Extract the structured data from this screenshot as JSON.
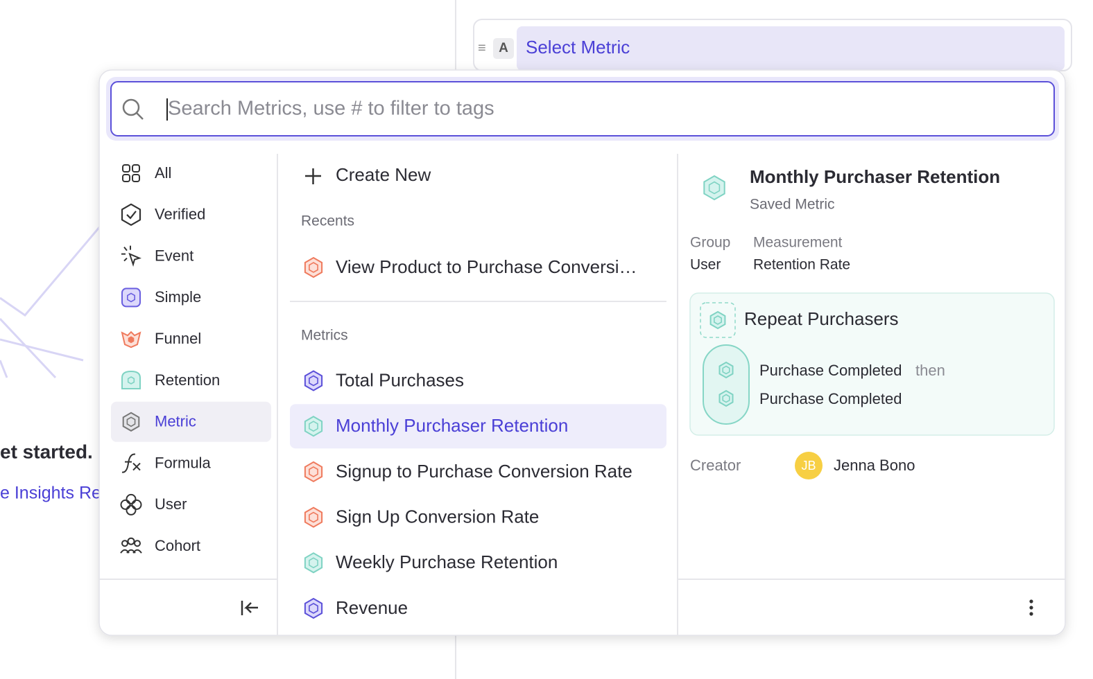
{
  "background": {
    "get_started": "et started.",
    "link": "e Insights Re"
  },
  "query": {
    "letter": "A",
    "label": "Select Metric"
  },
  "search": {
    "placeholder": "Search Metrics, use # to filter to tags"
  },
  "sidebar": {
    "items": [
      "All",
      "Verified",
      "Event",
      "Simple",
      "Funnel",
      "Retention",
      "Metric",
      "Formula",
      "User",
      "Cohort"
    ],
    "selected": "Metric"
  },
  "list": {
    "create_new": "Create New",
    "recents_heading": "Recents",
    "recents": [
      "View Product to Purchase Conversi…"
    ],
    "metrics_heading": "Metrics",
    "metrics": [
      "Total Purchases",
      "Monthly Purchaser Retention",
      "Signup to Purchase Conversion Rate",
      "Sign Up Conversion Rate",
      "Weekly Purchase Retention",
      "Revenue"
    ],
    "selected": "Monthly Purchaser Retention"
  },
  "detail": {
    "title": "Monthly Purchaser Retention",
    "subtitle": "Saved Metric",
    "group_label": "Group",
    "group_value": "User",
    "measurement_label": "Measurement",
    "measurement_value": "Retention Rate",
    "card": {
      "title": "Repeat Purchasers",
      "step_1": "Purchase Completed",
      "connector": "then",
      "step_2": "Purchase Completed"
    },
    "creator_label": "Creator",
    "creator_initials": "JB",
    "creator_name": "Jenna Bono"
  }
}
